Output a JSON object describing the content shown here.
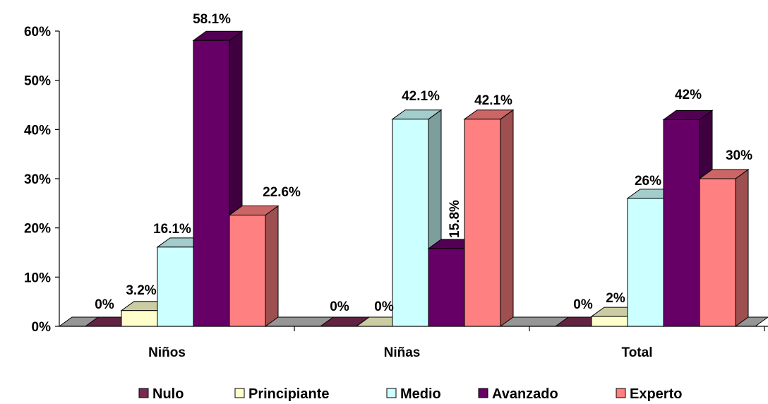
{
  "chart_data": {
    "type": "bar",
    "categories": [
      "Niños",
      "Niñas",
      "Total"
    ],
    "series": [
      {
        "name": "Nulo",
        "values": [
          0,
          0,
          0
        ],
        "labels": [
          "0%",
          "0%",
          "0%"
        ],
        "color": "#7a2a52"
      },
      {
        "name": "Principiante",
        "values": [
          3.2,
          0,
          2
        ],
        "labels": [
          "3.2%",
          "0%",
          "2%"
        ],
        "color": "#ffffcc"
      },
      {
        "name": "Medio",
        "values": [
          16.1,
          42.1,
          26
        ],
        "labels": [
          "16.1%",
          "42.1%",
          "26%"
        ],
        "color": "#ccffff"
      },
      {
        "name": "Avanzado",
        "values": [
          58.1,
          15.8,
          42
        ],
        "labels": [
          "58.1%",
          "15.8%",
          "42%"
        ],
        "color": "#660066"
      },
      {
        "name": "Experto",
        "values": [
          22.6,
          42.1,
          30
        ],
        "labels": [
          "22.6%",
          "42.1%",
          "30%"
        ],
        "color": "#ff8080"
      }
    ],
    "yticks": [
      "0%",
      "10%",
      "20%",
      "30%",
      "40%",
      "50%",
      "60%"
    ],
    "ylim": [
      0,
      60
    ],
    "legend_position": "bottom",
    "grid": false,
    "floor_color": "#969696"
  }
}
